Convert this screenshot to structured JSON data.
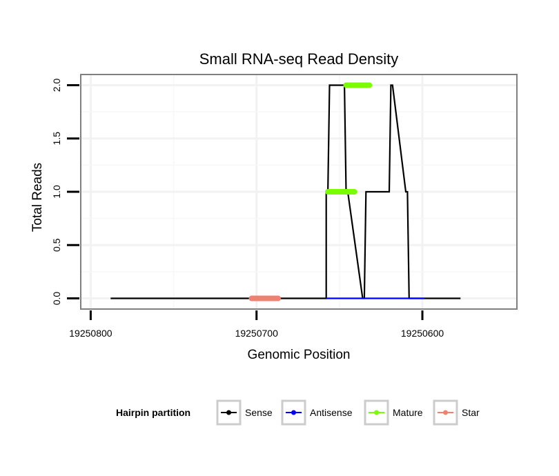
{
  "chart_data": {
    "type": "line",
    "title": "Small RNA-seq Read Density",
    "xlabel": "Genomic Position",
    "ylabel": "Total Reads",
    "x_reversed": true,
    "xlim": [
      19250806,
      19250543
    ],
    "ylim": [
      -0.1,
      2.1
    ],
    "x_ticks": [
      19250800,
      19250700,
      19250600
    ],
    "x_tick_labels": [
      "19250800",
      "19250700",
      "19250600"
    ],
    "y_ticks": [
      0,
      0.5,
      1,
      1.5,
      2
    ],
    "y_tick_labels": [
      "0.0",
      "0.5",
      "1.0",
      "1.5",
      "2.0"
    ],
    "grid": true,
    "legend": {
      "title": "Hairpin partition",
      "position": "bottom",
      "entries": [
        {
          "label": "Sense",
          "color": "#000000"
        },
        {
          "label": "Antisense",
          "color": "#0000ff"
        },
        {
          "label": "Mature",
          "color": "#7cfc00"
        },
        {
          "label": "Star",
          "color": "#f08070"
        }
      ]
    },
    "series": [
      {
        "name": "Sense",
        "color": "#000000",
        "x": [
          19250788,
          19250658,
          19250658,
          19250657,
          19250656,
          19250647,
          19250646,
          19250645,
          19250636,
          19250635,
          19250634,
          19250620,
          19250619,
          19250618,
          19250610,
          19250609,
          19250608,
          19250599,
          19250598,
          19250597,
          19250577
        ],
        "y": [
          0,
          0,
          1,
          1,
          2,
          2,
          1,
          1,
          0,
          0,
          1,
          1,
          2,
          2,
          1,
          1,
          0,
          0,
          0,
          0,
          0
        ],
        "x_note": "solid step line of read depth"
      },
      {
        "name": "Antisense",
        "color": "#0000ff",
        "x": [
          19250658,
          19250636,
          19250618,
          19250599
        ],
        "y": [
          0,
          0,
          0,
          0
        ]
      },
      {
        "name": "Mature",
        "color": "#7cfc00",
        "segments": [
          {
            "x_start": 19250657,
            "x_end": 19250641,
            "y": 1
          },
          {
            "x_start": 19250646,
            "x_end": 19250632,
            "y": 2
          }
        ]
      },
      {
        "name": "Star",
        "color": "#f08070",
        "segments": [
          {
            "x_start": 19250703,
            "x_end": 19250687,
            "y": 0
          }
        ]
      }
    ]
  }
}
